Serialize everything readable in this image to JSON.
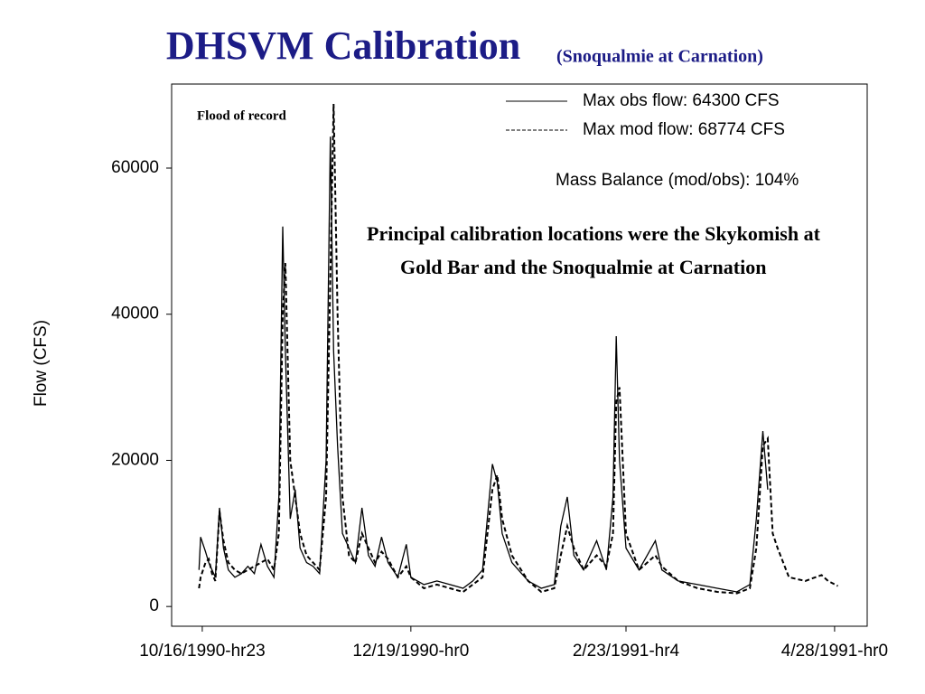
{
  "chart_data": {
    "type": "line",
    "title": "DHSVM Calibration",
    "subtitle": "(Snoqualmie at Carnation)",
    "ylabel": "Flow (CFS)",
    "annotations": [
      "Flood of record",
      "Mass Balance (mod/obs): 104%"
    ],
    "note": "Principal calibration locations were the Skykomish at Gold Bar and the Snoqualmie at Carnation",
    "x": [
      -1,
      -0.5,
      1,
      2,
      3,
      4,
      5.3,
      6.5,
      8,
      10,
      12,
      14,
      16,
      18,
      20,
      22,
      23.5,
      24.7,
      25.5,
      27,
      28.5,
      30,
      32,
      34,
      36,
      38,
      39.3,
      40.3,
      41.5,
      43,
      45,
      47,
      49,
      51,
      53,
      55,
      57,
      60,
      62.6,
      64,
      68,
      72,
      76,
      80,
      83,
      86,
      89,
      90.5,
      92,
      95,
      100,
      104,
      108,
      110,
      112,
      114,
      117,
      121,
      124,
      126,
      127,
      128,
      130,
      134,
      139,
      141,
      146,
      152,
      158,
      164,
      168,
      170,
      172,
      173.5,
      175,
      176.5,
      180,
      185,
      190,
      192,
      195
    ],
    "series": [
      {
        "name": "Max obs flow: 64300 CFS",
        "color": "#000000",
        "style": "solid",
        "values": [
          5000,
          9500,
          7500,
          6000,
          5000,
          4000,
          13500,
          8000,
          5000,
          4000,
          4500,
          5500,
          4500,
          8500,
          5500,
          4000,
          15000,
          52000,
          35000,
          12000,
          16000,
          8000,
          6000,
          5500,
          4500,
          20000,
          64300,
          35000,
          22000,
          10000,
          8000,
          6000,
          13500,
          7000,
          5500,
          9500,
          6000,
          4000,
          8500,
          4000,
          3000,
          3500,
          3000,
          2500,
          3500,
          5000,
          19500,
          17000,
          10000,
          6000,
          3500,
          2500,
          3000,
          11000,
          15000,
          7000,
          5000,
          9000,
          5000,
          15000,
          37000,
          20000,
          8000,
          5000,
          9000,
          5000,
          3500,
          3000,
          2500,
          2000,
          3000,
          12000,
          24000,
          16000,
          null,
          null,
          null,
          null,
          null,
          null,
          null
        ]
      },
      {
        "name": "Max mod flow: 68774 CFS",
        "color": "#000000",
        "style": "dashed",
        "values": [
          2500,
          4000,
          6000,
          6500,
          4500,
          3500,
          13000,
          9000,
          6000,
          5000,
          4500,
          5000,
          5500,
          6000,
          6500,
          5000,
          10000,
          40000,
          47000,
          20000,
          15000,
          10000,
          7000,
          6000,
          5000,
          15000,
          45000,
          68774,
          40000,
          15000,
          7000,
          6000,
          10000,
          8000,
          6000,
          7500,
          6500,
          4000,
          5500,
          4000,
          2500,
          3000,
          2500,
          2000,
          3000,
          4000,
          16000,
          18000,
          12000,
          7000,
          3500,
          2000,
          2500,
          7000,
          11000,
          8000,
          5000,
          7000,
          5500,
          10000,
          28000,
          30000,
          10000,
          5000,
          7000,
          5500,
          3500,
          2500,
          2000,
          1800,
          2500,
          8000,
          22000,
          23000,
          10000,
          8000,
          4000,
          3500,
          4300,
          3500,
          2800
        ]
      }
    ],
    "xlim": [
      -9.4,
      204
    ],
    "xticks": [
      {
        "value": 0,
        "label": "10/16/1990-hr23"
      },
      {
        "value": 64,
        "label": "12/19/1990-hr0"
      },
      {
        "value": 130,
        "label": "2/23/1991-hr4"
      },
      {
        "value": 194,
        "label": "4/28/1991-hr0"
      }
    ],
    "ylim": [
      -2700,
      71500
    ],
    "yticks": [
      0,
      20000,
      40000,
      60000
    ],
    "grid": false
  }
}
